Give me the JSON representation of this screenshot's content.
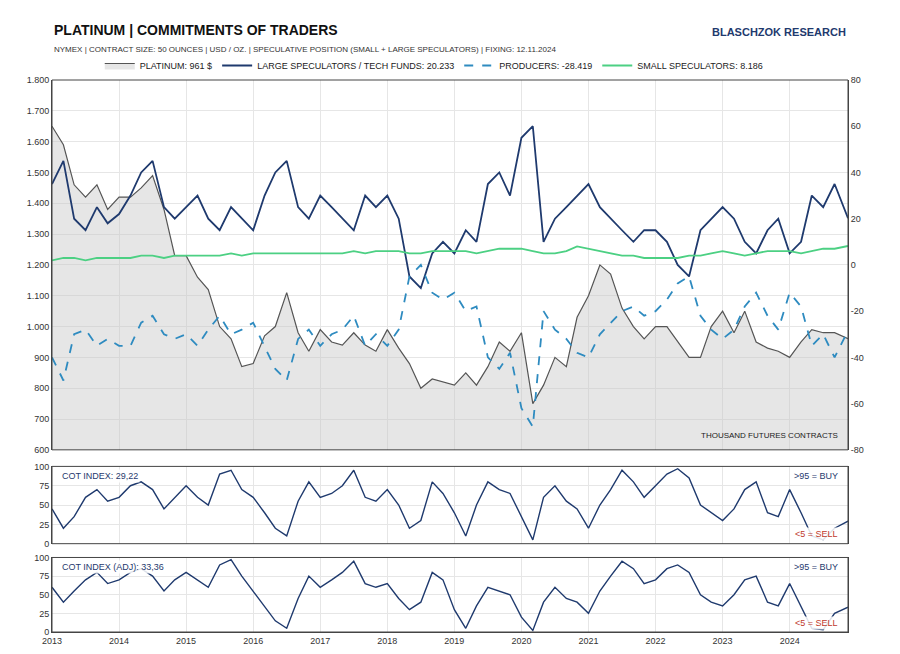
{
  "chart_data": {
    "type": "line",
    "grid": true,
    "legend": "top",
    "x": [
      2013,
      2013.17,
      2013.33,
      2013.5,
      2013.67,
      2013.83,
      2014,
      2014.17,
      2014.33,
      2014.5,
      2014.67,
      2014.83,
      2015,
      2015.17,
      2015.33,
      2015.5,
      2015.67,
      2015.83,
      2016,
      2016.17,
      2016.33,
      2016.5,
      2016.67,
      2016.83,
      2017,
      2017.17,
      2017.33,
      2017.5,
      2017.67,
      2017.83,
      2018,
      2018.17,
      2018.33,
      2018.5,
      2018.67,
      2018.83,
      2019,
      2019.17,
      2019.33,
      2019.5,
      2019.67,
      2019.83,
      2020,
      2020.17,
      2020.33,
      2020.5,
      2020.67,
      2020.83,
      2021,
      2021.17,
      2021.33,
      2021.5,
      2021.67,
      2021.83,
      2022,
      2022.17,
      2022.33,
      2022.5,
      2022.67,
      2022.83,
      2023,
      2023.17,
      2023.33,
      2023.5,
      2023.67,
      2023.83,
      2024,
      2024.17,
      2024.33,
      2024.5,
      2024.67,
      2024.87
    ],
    "xlim": [
      2013,
      2024.87
    ],
    "xticks": [
      2013,
      2014,
      2015,
      2016,
      2017,
      2018,
      2019,
      2020,
      2021,
      2022,
      2023,
      2024
    ],
    "panels": [
      {
        "title": "PLATINUM | COMMITMENTS OF TRADERS",
        "subtitle": "NYMEX | CONTRACT SIZE: 50 OUNCES | USD / OZ. | SPECULATIVE POSITION (SMALL + LARGE SPECULATORS) | FIXING: 12.11.2024",
        "logo": "BLASCHZOK RESEARCH",
        "y2_label": "THOUSAND FUTURES CONTRACTS",
        "ylim": [
          600,
          1800
        ],
        "yticks": [
          600,
          700,
          800,
          900,
          {
            "value": 1000,
            "label": "1.000"
          },
          {
            "value": 1100,
            "label": "1.100"
          },
          {
            "value": 1200,
            "label": "1.200"
          },
          {
            "value": 1300,
            "label": "1.300"
          },
          {
            "value": 1400,
            "label": "1.400"
          },
          {
            "value": 1500,
            "label": "1.500"
          },
          {
            "value": 1600,
            "label": "1.600"
          },
          {
            "value": 1700,
            "label": "1.700"
          },
          {
            "value": 1800,
            "label": "1.800"
          }
        ],
        "y2lim": [
          -80,
          80
        ],
        "y2ticks": [
          -80,
          -60,
          -40,
          -20,
          0,
          20,
          40,
          60,
          80
        ],
        "series": [
          {
            "name": "PLATINUM: 961 $",
            "type": "area",
            "color": "#555555",
            "values": [
              1650,
              1590,
              1460,
              1420,
              1460,
              1380,
              1420,
              1420,
              1450,
              1490,
              1380,
              1230,
              1230,
              1160,
              1120,
              1000,
              960,
              870,
              880,
              970,
              1000,
              1110,
              980,
              920,
              990,
              950,
              940,
              980,
              940,
              920,
              990,
              930,
              880,
              800,
              830,
              820,
              810,
              850,
              810,
              870,
              950,
              920,
              980,
              750,
              810,
              900,
              870,
              1030,
              1100,
              1200,
              1170,
              1060,
              1000,
              960,
              1000,
              1000,
              950,
              900,
              900,
              1000,
              1050,
              980,
              1050,
              950,
              930,
              920,
              900,
              950,
              990,
              980,
              980,
              961
            ]
          },
          {
            "name": "LARGE SPECULATORS / TECH FUNDS: 20.233",
            "axis": "y2",
            "color": "#1f3a6e",
            "line_style": "solid",
            "values": [
              35,
              45,
              20,
              15,
              25,
              18,
              22,
              30,
              40,
              45,
              25,
              20,
              25,
              30,
              20,
              15,
              25,
              20,
              15,
              30,
              40,
              45,
              25,
              20,
              30,
              25,
              20,
              15,
              30,
              25,
              30,
              20,
              -5,
              -10,
              5,
              10,
              5,
              15,
              10,
              35,
              40,
              30,
              55,
              60,
              10,
              20,
              25,
              30,
              35,
              25,
              20,
              15,
              10,
              15,
              15,
              10,
              0,
              -5,
              15,
              20,
              25,
              20,
              10,
              5,
              15,
              20,
              5,
              10,
              30,
              25,
              35,
              20.233
            ]
          },
          {
            "name": "PRODUCERS: -28.419",
            "axis": "y2",
            "color": "#2e8bc0",
            "line_style": "dash",
            "values": [
              -40,
              -50,
              -30,
              -28,
              -35,
              -32,
              -35,
              -35,
              -25,
              -22,
              -30,
              -32,
              -30,
              -35,
              -28,
              -22,
              -30,
              -28,
              -25,
              -35,
              -45,
              -50,
              -32,
              -28,
              -35,
              -30,
              -28,
              -22,
              -35,
              -30,
              -35,
              -28,
              -5,
              0,
              -12,
              -15,
              -12,
              -20,
              -18,
              -40,
              -45,
              -38,
              -62,
              -70,
              -20,
              -28,
              -32,
              -38,
              -40,
              -30,
              -25,
              -20,
              -18,
              -22,
              -20,
              -15,
              -8,
              -5,
              -22,
              -28,
              -32,
              -28,
              -18,
              -12,
              -22,
              -28,
              -12,
              -18,
              -35,
              -30,
              -40,
              -28.419
            ]
          },
          {
            "name": "SMALL SPECULATORS: 8.186",
            "axis": "y2",
            "color": "#4cd083",
            "line_style": "solid",
            "values": [
              2,
              3,
              3,
              2,
              3,
              3,
              3,
              3,
              4,
              4,
              3,
              4,
              4,
              4,
              4,
              4,
              5,
              4,
              5,
              5,
              5,
              5,
              5,
              5,
              5,
              5,
              5,
              6,
              5,
              6,
              6,
              6,
              5,
              5,
              6,
              6,
              6,
              6,
              5,
              6,
              7,
              7,
              7,
              6,
              5,
              5,
              6,
              8,
              7,
              6,
              5,
              4,
              4,
              3,
              3,
              3,
              3,
              4,
              4,
              5,
              6,
              5,
              4,
              5,
              6,
              6,
              6,
              5,
              6,
              7,
              7,
              8.186
            ]
          }
        ]
      },
      {
        "title": "COT INDEX: 29,22",
        "annotations": [
          ">95 = BUY",
          "<5 = SELL"
        ],
        "ylim": [
          0,
          100
        ],
        "yticks": [
          0,
          25,
          50,
          75,
          100
        ],
        "series": [
          {
            "color": "#1f3a6e",
            "values": [
              45,
              20,
              35,
              60,
              70,
              55,
              60,
              75,
              80,
              70,
              45,
              60,
              75,
              60,
              50,
              90,
              95,
              70,
              60,
              40,
              20,
              10,
              55,
              80,
              60,
              65,
              75,
              95,
              60,
              55,
              70,
              50,
              20,
              30,
              80,
              65,
              40,
              10,
              50,
              80,
              70,
              65,
              35,
              5,
              60,
              75,
              55,
              45,
              20,
              50,
              70,
              95,
              80,
              60,
              75,
              90,
              97,
              85,
              50,
              40,
              30,
              45,
              70,
              80,
              40,
              35,
              70,
              40,
              10,
              5,
              20,
              29.22
            ]
          }
        ]
      },
      {
        "title": "COT INDEX (ADJ): 33,36",
        "annotations": [
          ">95 = BUY",
          "<5 = SELL"
        ],
        "ylim": [
          0,
          100
        ],
        "yticks": [
          0,
          25,
          50,
          75,
          100
        ],
        "series": [
          {
            "color": "#1f3a6e",
            "values": [
              60,
              40,
              55,
              70,
              80,
              65,
              70,
              80,
              85,
              75,
              55,
              70,
              80,
              70,
              60,
              90,
              97,
              75,
              55,
              35,
              15,
              5,
              45,
              75,
              60,
              70,
              80,
              95,
              65,
              60,
              65,
              45,
              30,
              40,
              80,
              70,
              30,
              5,
              35,
              60,
              55,
              50,
              20,
              2,
              40,
              60,
              45,
              40,
              25,
              55,
              75,
              95,
              85,
              65,
              70,
              85,
              90,
              80,
              50,
              40,
              35,
              50,
              70,
              75,
              40,
              35,
              65,
              35,
              5,
              3,
              25,
              33.36
            ]
          }
        ]
      }
    ]
  }
}
